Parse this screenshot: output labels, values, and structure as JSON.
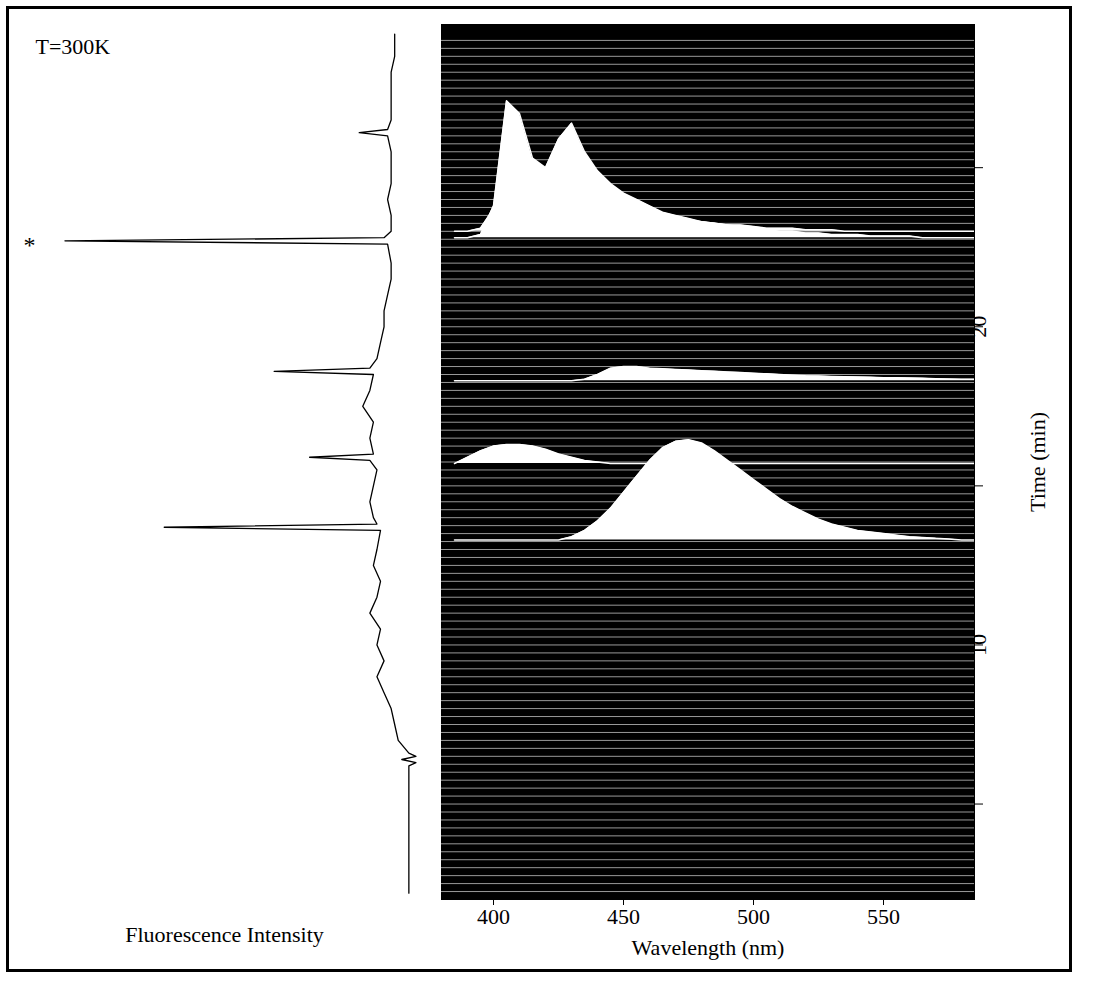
{
  "chart_data": [
    {
      "type": "line",
      "xlabel": "Fluorescence Intensity",
      "annotations": [
        {
          "text": "T=300K"
        },
        {
          "text": "*",
          "y": 22.7
        }
      ],
      "color": "black",
      "tick_labels": false,
      "xlim": [
        0,
        110
      ],
      "ylim": [
        2,
        29.5
      ],
      "y": [
        2.2,
        3,
        4,
        5,
        5.8,
        6.2,
        6.3,
        6.4,
        6.5,
        6.6,
        7,
        7.5,
        8,
        8.5,
        9,
        9.5,
        10,
        10.5,
        11,
        11.5,
        12,
        12.5,
        13,
        13.6,
        13.7,
        13.8,
        14,
        14.5,
        15,
        15.5,
        15.8,
        15.9,
        16,
        16.5,
        17,
        17.5,
        18,
        18.5,
        18.6,
        18.7,
        19,
        19.5,
        20,
        20.5,
        21,
        21.5,
        22,
        22.6,
        22.7,
        22.8,
        23,
        23.5,
        24,
        24.5,
        25,
        25.5,
        26,
        26.1,
        26.2,
        26.5,
        27,
        27.5,
        28,
        28.5,
        29.2
      ],
      "x": [
        3,
        3,
        3,
        3,
        3,
        3,
        1,
        5,
        1,
        3,
        6,
        7,
        8,
        10,
        12,
        10,
        12,
        11,
        14,
        12,
        11,
        13,
        12,
        11,
        72,
        12,
        13,
        14,
        13,
        12,
        14,
        31,
        13,
        14,
        13,
        16,
        14,
        13,
        41,
        14,
        12,
        11,
        10,
        10,
        9,
        8,
        8,
        9,
        100,
        10,
        8,
        8,
        9,
        8,
        8,
        8,
        9,
        17,
        9,
        8,
        8,
        8,
        8,
        7,
        7
      ]
    },
    {
      "type": "waterfall",
      "xlabel": "Wavelength (nm)",
      "ylabel": "Time (min)",
      "color": "white",
      "xlim": [
        380,
        585
      ],
      "xticks": [
        400,
        450,
        500,
        550
      ],
      "ylim": [
        2,
        29.5
      ],
      "yticks": [
        {
          "value": 5,
          "label": null
        },
        10,
        {
          "value": 15,
          "label": null
        },
        20,
        {
          "value": 25,
          "label": null
        }
      ],
      "trace_times": [
        2.25,
        2.5,
        2.75,
        3,
        3.25,
        3.5,
        3.75,
        4,
        4.25,
        4.5,
        4.75,
        5,
        5.25,
        5.5,
        5.75,
        6,
        6.25,
        6.5,
        6.75,
        7,
        7.25,
        7.5,
        7.75,
        8,
        8.25,
        8.5,
        8.75,
        9,
        9.25,
        9.5,
        9.75,
        10,
        10.25,
        10.5,
        10.75,
        11,
        11.25,
        11.5,
        11.75,
        12,
        12.25,
        12.5,
        12.75,
        13,
        13.25,
        13.5,
        13.75,
        14,
        14.25,
        14.5,
        14.75,
        15,
        15.25,
        15.5,
        15.75,
        16,
        16.25,
        16.5,
        16.75,
        17,
        17.25,
        17.5,
        17.75,
        18,
        18.25,
        18.5,
        18.75,
        19,
        19.25,
        19.5,
        19.75,
        20,
        20.25,
        20.5,
        20.75,
        21,
        21.25,
        21.5,
        21.75,
        22,
        22.25,
        22.5,
        22.75,
        23,
        23.25,
        23.5,
        23.75,
        24,
        24.25,
        24.5,
        24.75,
        25,
        25.25,
        25.5,
        25.75,
        26,
        26.25,
        26.5,
        26.75,
        27,
        27.25,
        27.5,
        27.75,
        28,
        28.25,
        28.5,
        28.75,
        29
      ],
      "wavelengths": [
        385,
        390,
        395,
        400,
        405,
        410,
        415,
        420,
        425,
        430,
        435,
        440,
        445,
        450,
        455,
        460,
        465,
        470,
        475,
        480,
        485,
        490,
        495,
        500,
        505,
        510,
        515,
        520,
        525,
        530,
        535,
        540,
        545,
        550,
        555,
        560,
        565,
        570,
        575,
        580,
        585
      ],
      "spectra": [
        {
          "time": 22.8,
          "values": [
            22.8,
            22.8,
            22.9,
            23.8,
            27.1,
            26.7,
            25.3,
            25.0,
            25.9,
            26.4,
            25.5,
            24.9,
            24.5,
            24.2,
            24.0,
            23.8,
            23.6,
            23.5,
            23.4,
            23.3,
            23.25,
            23.2,
            23.15,
            23.1,
            23.05,
            23.0,
            23.0,
            22.95,
            22.95,
            22.9,
            22.9,
            22.9,
            22.85,
            22.85,
            22.85,
            22.85,
            22.8,
            22.8,
            22.8,
            22.8,
            22.8
          ]
        },
        {
          "time": 23.0,
          "values": [
            23.0,
            23.0,
            23.1,
            23.7,
            26.2,
            26.0,
            24.9,
            24.7,
            25.4,
            25.8,
            25.0,
            24.5,
            24.2,
            24.0,
            23.8,
            23.6,
            23.5,
            23.4,
            23.35,
            23.3,
            23.25,
            23.2,
            23.2,
            23.15,
            23.1,
            23.1,
            23.1,
            23.05,
            23.05,
            23.05,
            23.0,
            23.0,
            23.0,
            23.0,
            23.0,
            23.0,
            23.0,
            23.0,
            23.0,
            23.0,
            23.0
          ]
        },
        {
          "time": 18.3,
          "values": [
            18.3,
            18.3,
            18.3,
            18.3,
            18.3,
            18.3,
            18.3,
            18.3,
            18.3,
            18.3,
            18.35,
            18.5,
            18.7,
            18.75,
            18.75,
            18.7,
            18.68,
            18.66,
            18.64,
            18.62,
            18.6,
            18.58,
            18.56,
            18.54,
            18.52,
            18.5,
            18.48,
            18.46,
            18.45,
            18.44,
            18.43,
            18.42,
            18.41,
            18.4,
            18.4,
            18.39,
            18.38,
            18.37,
            18.36,
            18.35,
            18.35
          ]
        },
        {
          "time": 15.7,
          "values": [
            15.7,
            15.9,
            16.1,
            16.25,
            16.3,
            16.3,
            16.25,
            16.15,
            16.0,
            15.9,
            15.8,
            15.75,
            15.7,
            15.7,
            15.7,
            15.7,
            15.7,
            15.7,
            15.7,
            15.7,
            15.7,
            15.7,
            15.7,
            15.7,
            15.7,
            15.7,
            15.7,
            15.7,
            15.7,
            15.7,
            15.7,
            15.7,
            15.7,
            15.7,
            15.7,
            15.7,
            15.7,
            15.7,
            15.7,
            15.7,
            15.7
          ]
        },
        {
          "time": 13.3,
          "values": [
            13.3,
            13.3,
            13.3,
            13.3,
            13.3,
            13.3,
            13.3,
            13.3,
            13.3,
            13.4,
            13.6,
            13.9,
            14.3,
            14.8,
            15.3,
            15.8,
            16.2,
            16.4,
            16.45,
            16.35,
            16.1,
            15.8,
            15.5,
            15.2,
            14.9,
            14.6,
            14.35,
            14.15,
            13.95,
            13.8,
            13.7,
            13.6,
            13.55,
            13.5,
            13.45,
            13.4,
            13.38,
            13.35,
            13.33,
            13.3,
            13.3
          ]
        }
      ]
    }
  ]
}
